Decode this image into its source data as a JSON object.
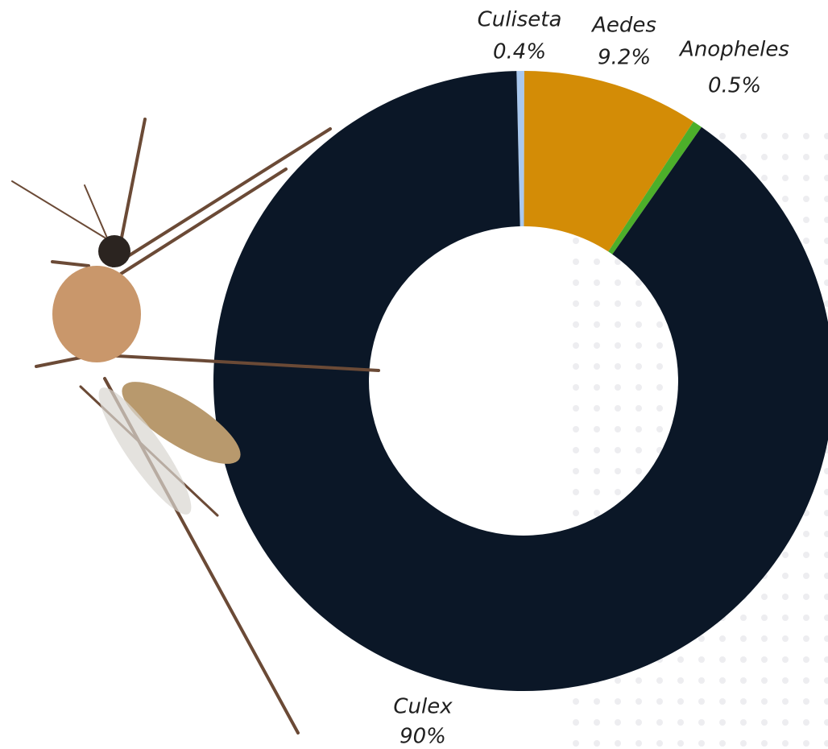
{
  "chart_data": {
    "type": "donut",
    "categories": [
      "Culiseta",
      "Aedes",
      "Anopheles",
      "Culex"
    ],
    "values": [
      0.4,
      9.2,
      0.5,
      90
    ],
    "value_labels": [
      "0.4%",
      "9.2%",
      "0.5%",
      "90%"
    ],
    "colors": [
      "#a9c8ee",
      "#d38c06",
      "#4caf2a",
      "#0b1727"
    ]
  }
}
